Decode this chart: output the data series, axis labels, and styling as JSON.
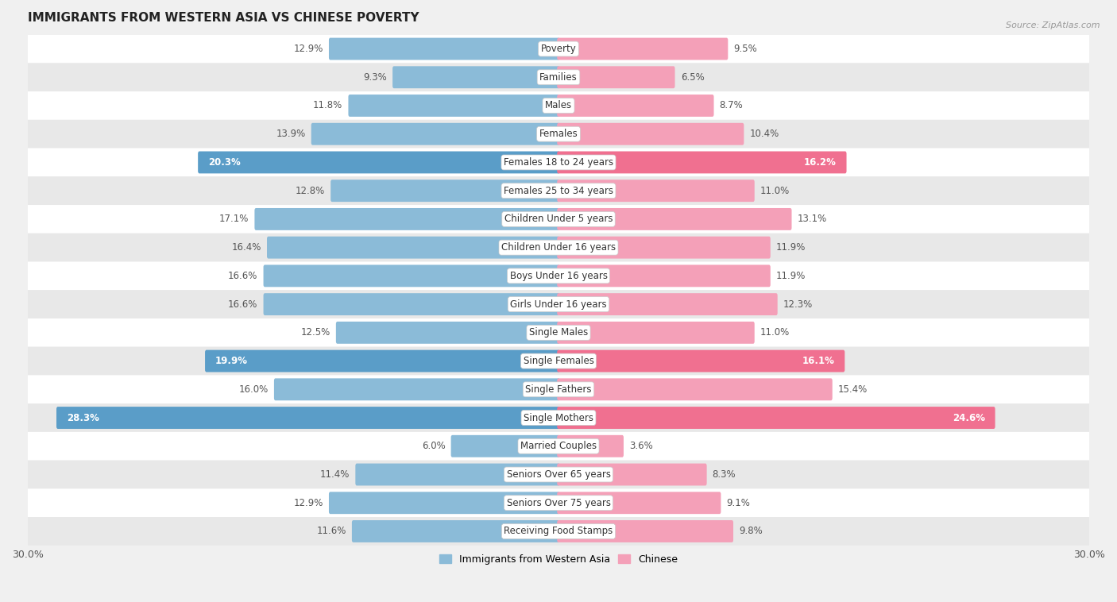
{
  "title": "IMMIGRANTS FROM WESTERN ASIA VS CHINESE POVERTY",
  "source": "Source: ZipAtlas.com",
  "categories": [
    "Poverty",
    "Families",
    "Males",
    "Females",
    "Females 18 to 24 years",
    "Females 25 to 34 years",
    "Children Under 5 years",
    "Children Under 16 years",
    "Boys Under 16 years",
    "Girls Under 16 years",
    "Single Males",
    "Single Females",
    "Single Fathers",
    "Single Mothers",
    "Married Couples",
    "Seniors Over 65 years",
    "Seniors Over 75 years",
    "Receiving Food Stamps"
  ],
  "western_asia": [
    12.9,
    9.3,
    11.8,
    13.9,
    20.3,
    12.8,
    17.1,
    16.4,
    16.6,
    16.6,
    12.5,
    19.9,
    16.0,
    28.3,
    6.0,
    11.4,
    12.9,
    11.6
  ],
  "chinese": [
    9.5,
    6.5,
    8.7,
    10.4,
    16.2,
    11.0,
    13.1,
    11.9,
    11.9,
    12.3,
    11.0,
    16.1,
    15.4,
    24.6,
    3.6,
    8.3,
    9.1,
    9.8
  ],
  "western_asia_color": "#8bbbd8",
  "chinese_color": "#f4a0b8",
  "western_asia_highlight_color": "#5a9dc8",
  "chinese_highlight_color": "#f07090",
  "highlight_rows": [
    4,
    11,
    13
  ],
  "background_color": "#f0f0f0",
  "row_bg_white": "#ffffff",
  "row_bg_gray": "#e8e8e8",
  "axis_limit": 30.0,
  "legend_label_left": "Immigrants from Western Asia",
  "legend_label_right": "Chinese",
  "label_fontsize": 8.5,
  "title_fontsize": 11,
  "bar_height": 0.62
}
